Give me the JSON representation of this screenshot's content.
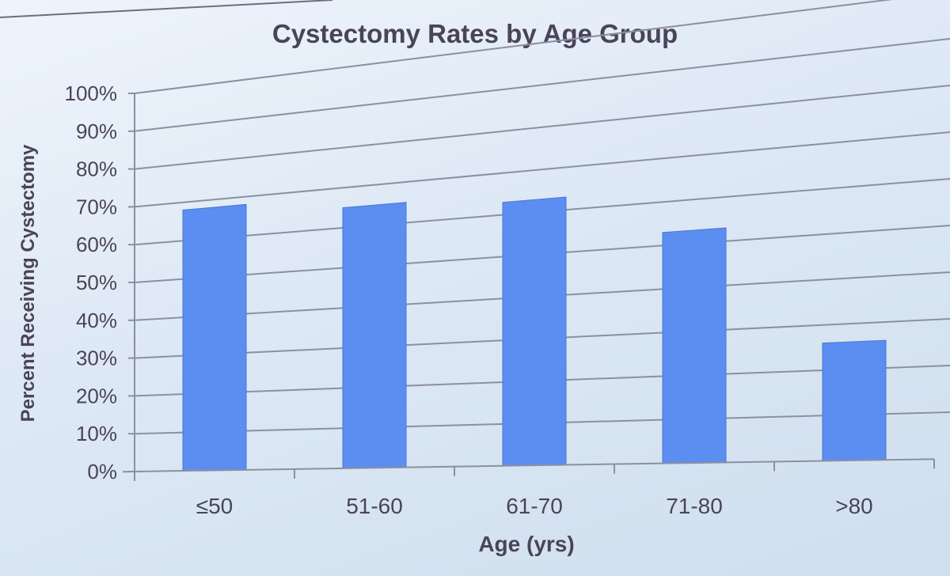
{
  "chart_data": {
    "type": "bar",
    "title": "Cystectomy Rates by Age Group",
    "xlabel": "Age (yrs)",
    "ylabel": "Percent Receiving Cystectomy",
    "categories": [
      "≤50",
      "51-60",
      "61-70",
      "71-80",
      ">80"
    ],
    "values": [
      68,
      65,
      63,
      53,
      26
    ],
    "ylim": [
      0,
      100
    ],
    "yticks": [
      "0%",
      "10%",
      "20%",
      "30%",
      "40%",
      "50%",
      "60%",
      "70%",
      "80%",
      "90%",
      "100%"
    ],
    "grid": true,
    "legend": "none",
    "colors": {
      "bar": "#5b8ef0",
      "grid": "#8c8fa2",
      "text": "#4a4458"
    }
  }
}
